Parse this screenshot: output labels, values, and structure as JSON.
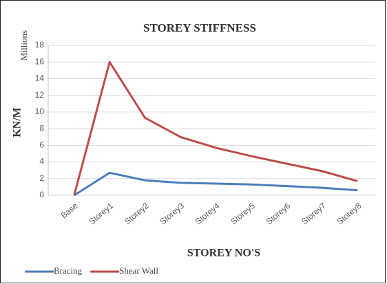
{
  "chart_data": {
    "type": "line",
    "title": "STOREY STIFFNESS",
    "y_unit": "Millions",
    "ylabel": "KN/M",
    "xlabel": "STOREY NO'S",
    "categories": [
      "Base",
      "Storey1",
      "Storey2",
      "Storey3",
      "Storey4",
      "Storey5",
      "Storey6",
      "Storey7",
      "Storey8"
    ],
    "series": [
      {
        "name": "Bracing",
        "color": "#4a7ebb",
        "values": [
          0,
          2.7,
          1.8,
          1.5,
          1.4,
          1.3,
          1.1,
          0.9,
          0.6
        ]
      },
      {
        "name": "Shear Wall",
        "color": "#be4b48",
        "values": [
          0,
          16,
          9.3,
          7,
          5.7,
          4.7,
          3.8,
          2.9,
          1.7
        ]
      }
    ],
    "ylim": [
      0,
      18
    ],
    "yticks": [
      0,
      2,
      4,
      6,
      8,
      10,
      12,
      14,
      16,
      18
    ],
    "grid": true,
    "legend": "bottom-left"
  }
}
